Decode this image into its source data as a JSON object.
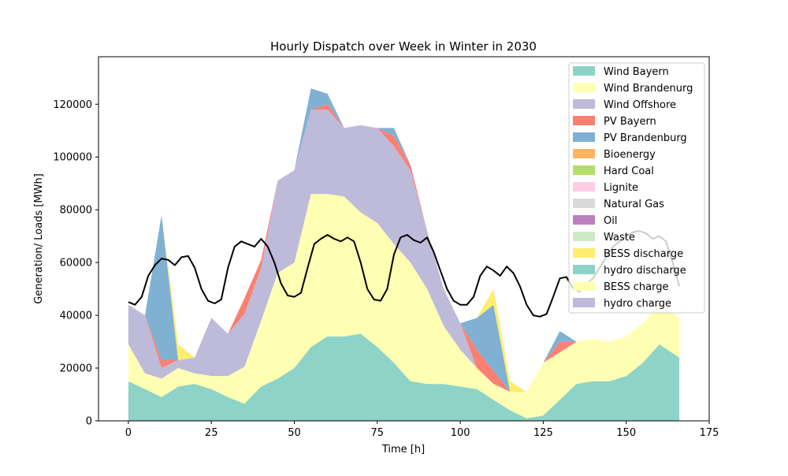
{
  "chart_data": {
    "type": "area",
    "title": "Hourly Dispatch over Week in Winter in 2030",
    "xlabel": "Time [h]",
    "ylabel": "Generation/ Loads [MWh]",
    "xlim": [
      -9,
      175
    ],
    "ylim": [
      0,
      138000
    ],
    "xticks": [
      0,
      25,
      50,
      75,
      100,
      125,
      150,
      175
    ],
    "yticks": [
      0,
      20000,
      40000,
      60000,
      80000,
      100000,
      120000
    ],
    "grid": false,
    "legend_position": "top-right",
    "x": [
      0,
      5,
      10,
      15,
      20,
      25,
      30,
      35,
      40,
      45,
      50,
      55,
      60,
      65,
      70,
      75,
      80,
      85,
      90,
      95,
      100,
      105,
      110,
      115,
      120,
      125,
      130,
      135,
      140,
      145,
      150,
      155,
      160,
      166
    ],
    "series": [
      {
        "name": "Wind Bayern",
        "color": "#8dd3c7",
        "values": [
          15000,
          12000,
          9000,
          13000,
          14000,
          12000,
          9000,
          6500,
          13000,
          16000,
          20000,
          28000,
          32000,
          32000,
          33000,
          28000,
          22000,
          15000,
          14000,
          14000,
          13000,
          12000,
          8000,
          4000,
          1000,
          2000,
          8000,
          14000,
          15000,
          15000,
          17000,
          22000,
          29000,
          24000
        ]
      },
      {
        "name": "Wind Brandenurg",
        "color": "#ffffb3",
        "values": [
          14000,
          6000,
          7000,
          7000,
          4000,
          5000,
          8000,
          14000,
          25000,
          40000,
          40000,
          58000,
          54000,
          53000,
          46000,
          47000,
          45000,
          45000,
          36000,
          22000,
          14000,
          8000,
          6000,
          7000,
          10000,
          20000,
          18000,
          16000,
          16000,
          15000,
          15000,
          15000,
          15000,
          15000
        ]
      },
      {
        "name": "Wind Offshore",
        "color": "#bebada",
        "values": [
          15000,
          22000,
          4000,
          3000,
          6000,
          22000,
          16000,
          20000,
          20000,
          35000,
          35000,
          32000,
          32000,
          26000,
          33000,
          36000,
          37000,
          35000,
          22000,
          14000,
          10000,
          0,
          0,
          0,
          0,
          0,
          0,
          0,
          0,
          0,
          0,
          0,
          0,
          0
        ]
      },
      {
        "name": "PV Bayern",
        "color": "#fb8072",
        "values": [
          0,
          0,
          3000,
          0,
          0,
          0,
          0,
          6000,
          3000,
          0,
          0,
          0,
          2000,
          0,
          0,
          0,
          4000,
          2000,
          0,
          0,
          0,
          7000,
          5000,
          0,
          0,
          0,
          4000,
          0,
          0,
          0,
          0,
          0,
          0,
          0
        ]
      },
      {
        "name": "PV Brandenburg",
        "color": "#80b1d3",
        "values": [
          0,
          0,
          55000,
          0,
          0,
          0,
          0,
          0,
          0,
          0,
          0,
          8000,
          4000,
          0,
          0,
          0,
          3000,
          0,
          0,
          0,
          0,
          12000,
          25000,
          0,
          0,
          0,
          4000,
          0,
          0,
          0,
          0,
          0,
          0,
          0
        ]
      },
      {
        "name": "Bioenergy",
        "color": "#fdb462",
        "values": [
          0,
          0,
          0,
          0,
          0,
          0,
          0,
          0,
          0,
          0,
          0,
          0,
          0,
          0,
          0,
          0,
          0,
          0,
          0,
          0,
          0,
          0,
          0,
          0,
          0,
          0,
          0,
          0,
          0,
          0,
          0,
          0,
          0,
          0
        ]
      },
      {
        "name": "Hard Coal",
        "color": "#b3de69",
        "values": [
          0,
          0,
          0,
          0,
          0,
          0,
          0,
          0,
          0,
          0,
          0,
          0,
          0,
          0,
          0,
          0,
          0,
          0,
          0,
          0,
          0,
          0,
          0,
          0,
          0,
          0,
          0,
          0,
          0,
          0,
          0,
          0,
          0,
          0
        ]
      },
      {
        "name": "Lignite",
        "color": "#fccde5",
        "values": [
          0,
          0,
          0,
          0,
          0,
          0,
          0,
          0,
          0,
          0,
          0,
          0,
          0,
          0,
          0,
          0,
          0,
          0,
          0,
          0,
          0,
          0,
          0,
          0,
          0,
          0,
          0,
          0,
          0,
          0,
          0,
          0,
          0,
          0
        ]
      },
      {
        "name": "Natural Gas",
        "color": "#d9d9d9",
        "values": [
          0,
          0,
          0,
          0,
          0,
          0,
          0,
          0,
          0,
          0,
          0,
          0,
          0,
          0,
          0,
          0,
          0,
          0,
          0,
          0,
          0,
          0,
          0,
          0,
          0,
          0,
          0,
          0,
          0,
          0,
          0,
          0,
          0,
          0
        ]
      },
      {
        "name": "Oil",
        "color": "#bc80bd",
        "values": [
          0,
          0,
          0,
          0,
          0,
          0,
          0,
          0,
          0,
          0,
          0,
          0,
          0,
          0,
          0,
          0,
          0,
          0,
          0,
          0,
          0,
          0,
          0,
          0,
          0,
          0,
          0,
          0,
          0,
          0,
          0,
          0,
          0,
          0
        ]
      },
      {
        "name": "Waste",
        "color": "#ccebc5",
        "values": [
          0,
          0,
          0,
          0,
          0,
          0,
          0,
          0,
          0,
          0,
          0,
          0,
          0,
          0,
          0,
          0,
          0,
          0,
          0,
          0,
          0,
          0,
          0,
          0,
          0,
          0,
          0,
          0,
          0,
          0,
          0,
          0,
          0,
          0
        ]
      },
      {
        "name": "BESS discharge",
        "color": "#ffed6f",
        "values": [
          0,
          0,
          0,
          6000,
          0,
          0,
          0,
          0,
          0,
          0,
          0,
          0,
          0,
          0,
          0,
          0,
          0,
          0,
          0,
          0,
          0,
          0,
          6000,
          4000,
          0,
          0,
          0,
          0,
          0,
          0,
          0,
          0,
          0,
          0
        ]
      },
      {
        "name": "hydro discharge",
        "color": "#8dd3c7",
        "values": [
          0,
          0,
          0,
          0,
          0,
          0,
          0,
          0,
          0,
          0,
          0,
          0,
          0,
          0,
          0,
          0,
          0,
          0,
          0,
          0,
          0,
          0,
          0,
          0,
          0,
          0,
          0,
          0,
          0,
          0,
          0,
          0,
          0,
          0
        ]
      },
      {
        "name": "BESS charge",
        "color": "#ffffb3",
        "values": [
          0,
          0,
          0,
          0,
          0,
          0,
          0,
          0,
          0,
          0,
          0,
          0,
          0,
          0,
          0,
          0,
          0,
          0,
          0,
          0,
          0,
          0,
          0,
          0,
          0,
          0,
          0,
          0,
          0,
          0,
          0,
          0,
          0,
          0
        ]
      },
      {
        "name": "hydro charge",
        "color": "#bebada",
        "values": [
          0,
          0,
          0,
          0,
          0,
          0,
          0,
          0,
          0,
          0,
          0,
          0,
          0,
          0,
          0,
          0,
          0,
          0,
          0,
          0,
          0,
          0,
          0,
          0,
          0,
          0,
          0,
          0,
          0,
          0,
          0,
          0,
          0,
          0
        ]
      }
    ],
    "load": {
      "color": "#000000",
      "x": [
        0,
        2,
        4,
        6,
        8,
        10,
        12,
        14,
        16,
        18,
        20,
        22,
        24,
        26,
        28,
        30,
        32,
        34,
        36,
        38,
        40,
        42,
        44,
        46,
        48,
        50,
        52,
        54,
        56,
        58,
        60,
        62,
        64,
        66,
        68,
        70,
        72,
        74,
        76,
        78,
        80,
        82,
        84,
        86,
        88,
        90,
        92,
        94,
        96,
        98,
        100,
        102,
        104,
        106,
        108,
        110,
        112,
        114,
        116,
        118,
        120,
        122,
        124,
        126,
        128,
        130,
        132,
        134,
        136,
        138,
        140,
        142,
        144,
        146,
        148,
        150,
        152,
        154,
        156,
        158,
        160,
        162,
        164,
        166
      ],
      "values": [
        45000,
        44000,
        47000,
        55000,
        59000,
        61500,
        61000,
        59000,
        62000,
        62500,
        58000,
        50000,
        45500,
        44500,
        46000,
        58000,
        66000,
        68000,
        67000,
        66000,
        69000,
        66000,
        60000,
        52000,
        47500,
        47000,
        48500,
        58000,
        67000,
        69000,
        70500,
        69000,
        68000,
        69500,
        68000,
        60000,
        50000,
        46000,
        45500,
        50000,
        63000,
        69500,
        70500,
        68500,
        67500,
        69500,
        64000,
        57000,
        50000,
        45500,
        44000,
        44000,
        47000,
        55000,
        58500,
        57000,
        55000,
        58500,
        56000,
        51000,
        44000,
        40000,
        39500,
        40500,
        47000,
        54000,
        54500,
        50000,
        49000,
        52000,
        54000,
        58000,
        62000,
        66000,
        68000,
        70000,
        71500,
        72000,
        71000,
        69000,
        70000,
        68000,
        60000,
        51000
      ]
    }
  }
}
